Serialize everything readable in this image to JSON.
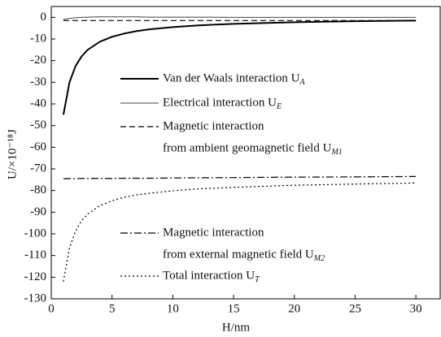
{
  "chart_data": {
    "type": "line",
    "xlabel": "H/nm",
    "ylabel": "U/×10⁻¹⁸J",
    "xlim": [
      0,
      32
    ],
    "ylim": [
      -130,
      5
    ],
    "xticks": [
      0,
      5,
      10,
      15,
      20,
      25,
      30
    ],
    "yticks": [
      -130,
      -120,
      -110,
      -100,
      -90,
      -80,
      -70,
      -60,
      -50,
      -40,
      -30,
      -20,
      -10,
      0
    ],
    "x": [
      1,
      1.5,
      2,
      2.5,
      3,
      4,
      5,
      6,
      7,
      8,
      10,
      12,
      15,
      20,
      25,
      30
    ],
    "series": [
      {
        "name": [
          "Van der Waals interaction U"
        ],
        "subscript": "A",
        "color": "#000000",
        "linewidth": 2,
        "linestyle": "solid",
        "values": [
          -45,
          -30,
          -22.5,
          -18,
          -15,
          -11.25,
          -9,
          -7.5,
          -6.4,
          -5.6,
          -4.5,
          -3.75,
          -3,
          -2.25,
          -1.8,
          -1.5
        ]
      },
      {
        "name": [
          "Electrical interaction U"
        ],
        "subscript": "E",
        "color": "#444444",
        "linewidth": 1,
        "linestyle": "solid",
        "values": [
          -1,
          -0.5,
          -0.2,
          0,
          0.1,
          0.2,
          0.2,
          0.2,
          0.2,
          0.1,
          0.1,
          0.1,
          0,
          0,
          0,
          0
        ]
      },
      {
        "name": [
          "Magnetic interaction",
          "from ambient geomagnetic field U"
        ],
        "subscript": "M1",
        "color": "#000000",
        "linewidth": 1.2,
        "linestyle": "dashed",
        "values": [
          -1.5,
          -1.5,
          -1.5,
          -1.5,
          -1.5,
          -1.5,
          -1.5,
          -1.5,
          -1.5,
          -1.5,
          -1.5,
          -1.5,
          -1.5,
          -1.5,
          -1.5,
          -1.5
        ]
      },
      {
        "name": [
          "Magnetic interaction",
          "from external magnetic field U"
        ],
        "subscript": "M2",
        "color": "#000000",
        "linewidth": 1.2,
        "linestyle": "dashdot",
        "values": [
          -74.5,
          -74.5,
          -74.5,
          -74.4,
          -74.4,
          -74.4,
          -74.4,
          -74.3,
          -74.3,
          -74.3,
          -74.2,
          -74.1,
          -74,
          -73.8,
          -73.7,
          -73.5
        ]
      },
      {
        "name": [
          "Total interaction U"
        ],
        "subscript": "T",
        "color": "#000000",
        "linewidth": 1.2,
        "linestyle": "dotted",
        "values": [
          -122,
          -106.5,
          -98.7,
          -93.9,
          -90.8,
          -86.95,
          -84.7,
          -83.1,
          -82,
          -81.3,
          -80.1,
          -79.25,
          -78.5,
          -77.55,
          -77,
          -76.5
        ]
      }
    ]
  }
}
